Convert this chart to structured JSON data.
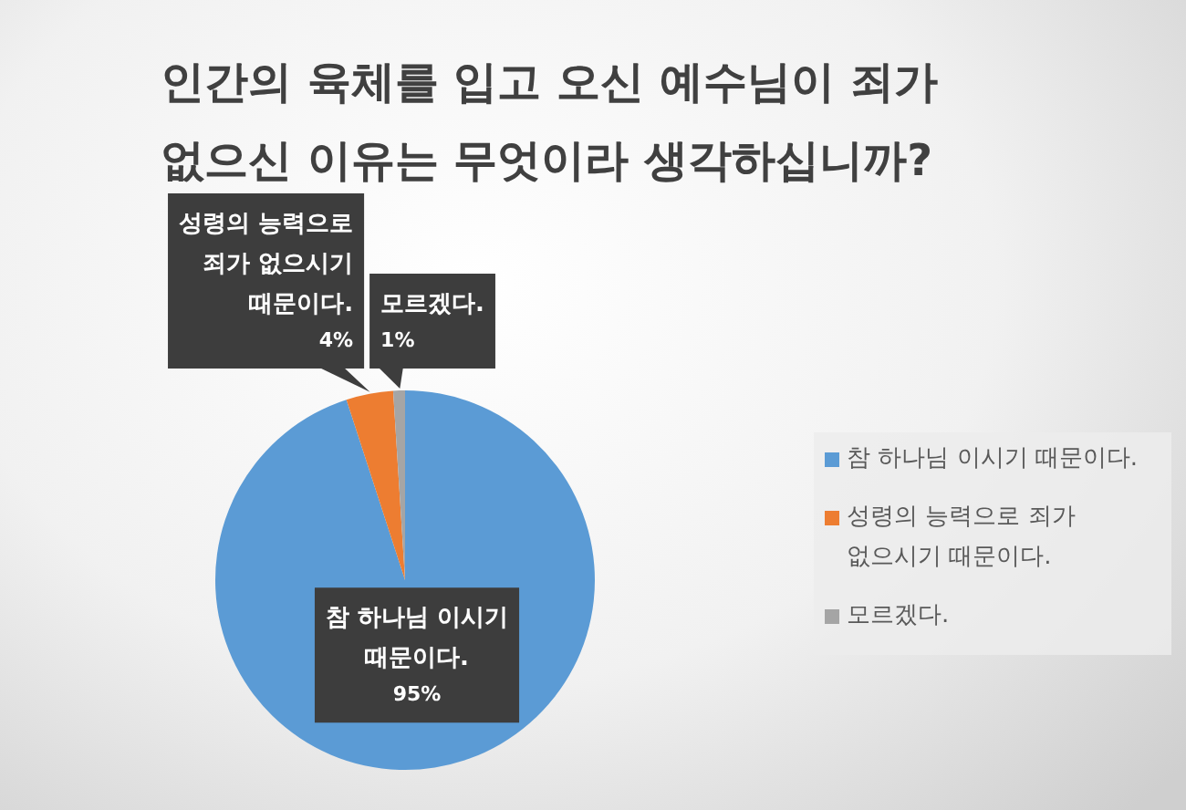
{
  "chart_data": {
    "type": "pie",
    "title": "인간의 육체를 입고 오신 예수님이 죄가 없으신 이유는 무엇이라 생각하십니까?",
    "categories": [
      "참 하나님 이시기 때문이다.",
      "성령의 능력으로 죄가 없으시기 때문이다.",
      "모르겠다."
    ],
    "values": [
      95,
      4,
      1
    ],
    "colors": [
      "#5b9bd5",
      "#ed7d31",
      "#a5a5a5"
    ],
    "value_labels": [
      "95%",
      "4%",
      "1%"
    ],
    "legend": "right"
  }
}
